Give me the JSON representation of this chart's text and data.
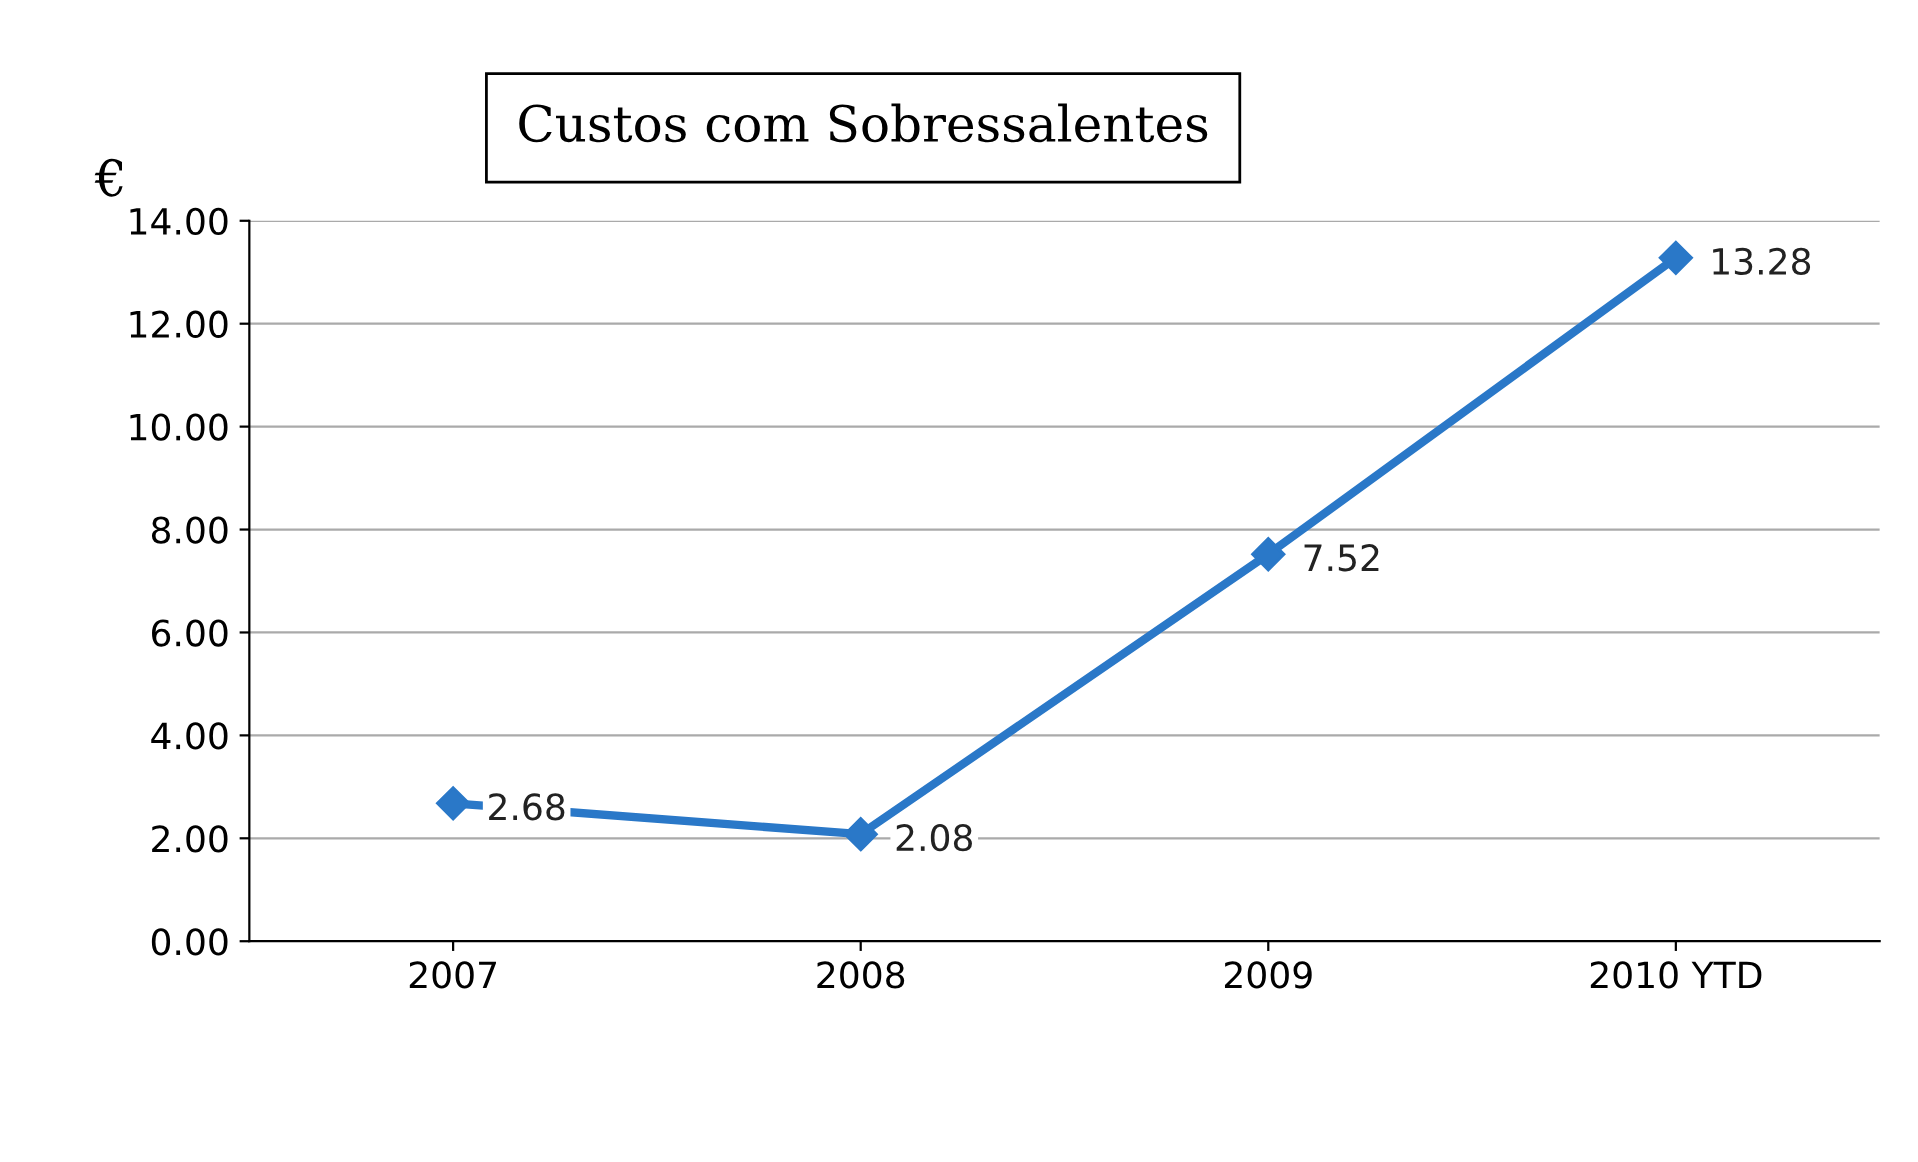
{
  "chart_data": {
    "type": "line",
    "title": "Custos com Sobressalentes",
    "ylabel": "€",
    "categories": [
      "2007",
      "2008",
      "2009",
      "2010 YTD"
    ],
    "series": [
      {
        "color": "#2a78c8",
        "values": [
          2.68,
          2.08,
          7.52,
          13.28
        ]
      }
    ],
    "ylim": [
      0,
      14
    ],
    "yticks": [
      {
        "value": 0,
        "label": "0.00"
      },
      {
        "value": 2,
        "label": "2.00"
      },
      {
        "value": 4,
        "label": "4.00"
      },
      {
        "value": 6,
        "label": "6.00"
      },
      {
        "value": 8,
        "label": "8.00"
      },
      {
        "value": 10,
        "label": "10.00"
      },
      {
        "value": 12,
        "label": "12.00"
      },
      {
        "value": 14,
        "label": "14.00"
      }
    ],
    "grid": "y",
    "marker": "diamond",
    "line_style": "solid",
    "data_labels": true,
    "legend": false
  }
}
